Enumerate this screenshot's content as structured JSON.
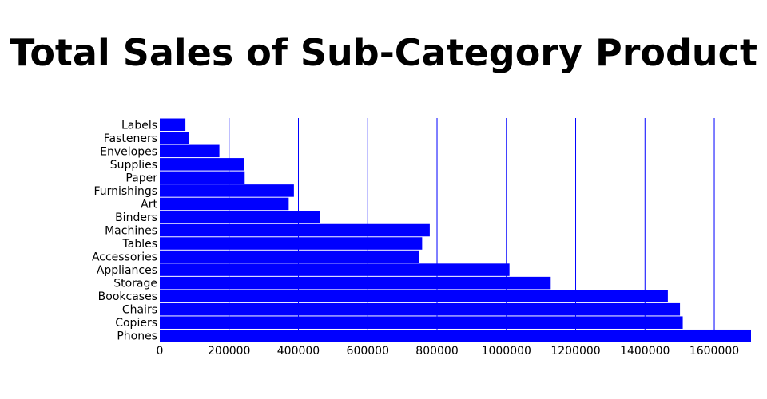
{
  "chart_data": {
    "type": "bar",
    "orientation": "horizontal",
    "title": "Total Sales of Sub-Category Product",
    "xlabel": "",
    "ylabel": "",
    "categories": [
      "Labels",
      "Fasteners",
      "Envelopes",
      "Supplies",
      "Paper",
      "Furnishings",
      "Art",
      "Binders",
      "Machines",
      "Tables",
      "Accessories",
      "Appliances",
      "Storage",
      "Bookcases",
      "Chairs",
      "Copiers",
      "Phones"
    ],
    "values": [
      74000,
      83000,
      172000,
      243000,
      245000,
      387000,
      372000,
      462000,
      779000,
      757000,
      748000,
      1009000,
      1128000,
      1466000,
      1501000,
      1509000,
      1706000
    ],
    "xlim": [
      0,
      1706000
    ],
    "xticks": [
      0,
      200000,
      400000,
      600000,
      800000,
      1000000,
      1200000,
      1400000,
      1600000
    ],
    "xtick_labels": [
      "0",
      "200000",
      "400000",
      "600000",
      "800000",
      "1000000",
      "1200000",
      "1400000",
      "1600000"
    ],
    "grid": "vertical",
    "legend": "none",
    "colors": {
      "bar": "#0000ff",
      "grid": "#0000ff",
      "background": "#ffffff",
      "text": "#000000"
    }
  }
}
